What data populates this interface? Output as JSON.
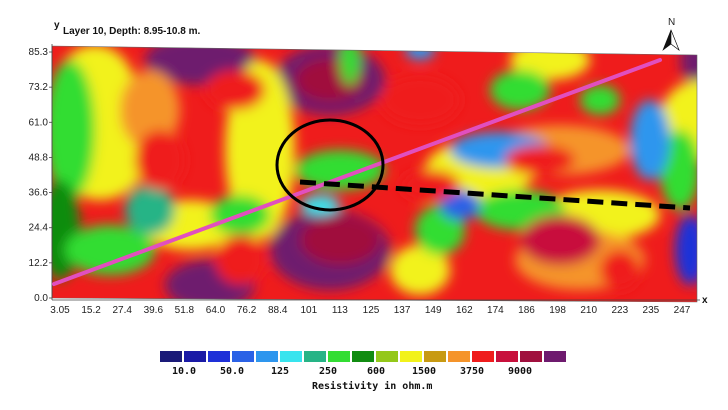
{
  "map": {
    "title": "Layer 10, Depth: 8.95-10.8 m.",
    "y_axis_label": "y",
    "x_axis_label": "x",
    "north_label": "N",
    "y_ticks": [
      "0.0",
      "12.2",
      "24.4",
      "36.6",
      "48.8",
      "61.0",
      "73.2",
      "85.3"
    ],
    "x_ticks": [
      "3.05",
      "15.2",
      "27.4",
      "39.6",
      "51.8",
      "64.0",
      "76.2",
      "88.4",
      "101",
      "113",
      "125",
      "137",
      "149",
      "162",
      "174",
      "186",
      "198",
      "210",
      "223",
      "235",
      "247"
    ],
    "palette": [
      "#1a1a78",
      "#1a1aa6",
      "#1e30d8",
      "#2b62e6",
      "#2e96ee",
      "#38e4ee",
      "#26b486",
      "#33dd33",
      "#118c11",
      "#94c81a",
      "#f2f21b",
      "#c89a12",
      "#f5942a",
      "#ef1c1c",
      "#c8103c",
      "#a0103e",
      "#6e1a6e"
    ],
    "overlays": {
      "survey_line_color": "#e14fbf",
      "trend_line_color": "#000000",
      "anomaly_circle_color": "#000000"
    }
  },
  "legend": {
    "title": "Resistivity in ohm.m",
    "labels": [
      "10.0",
      "50.0",
      "125",
      "250",
      "600",
      "1500",
      "3750",
      "9000"
    ]
  }
}
